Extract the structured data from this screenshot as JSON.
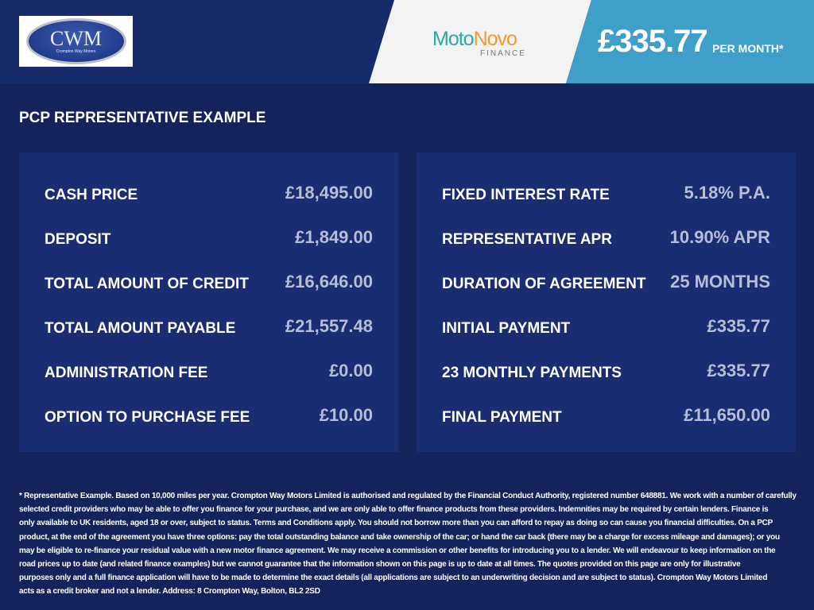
{
  "header": {
    "logo_text": "CWM",
    "logo_subtext": "Crompton Way Motors",
    "lender_name_1": "Moto",
    "lender_name_2": "Novo",
    "lender_sub": "FINANCE",
    "monthly_price": "£335.77",
    "per_month": "PER MONTH*"
  },
  "title": "PCP REPRESENTATIVE EXAMPLE",
  "left": [
    {
      "label": "CASH PRICE",
      "value": "£18,495.00"
    },
    {
      "label": "DEPOSIT",
      "value": "£1,849.00"
    },
    {
      "label": "TOTAL AMOUNT OF CREDIT",
      "value": "£16,646.00"
    },
    {
      "label": "TOTAL AMOUNT PAYABLE",
      "value": "£21,557.48"
    },
    {
      "label": "ADMINISTRATION FEE",
      "value": "£0.00"
    },
    {
      "label": "OPTION TO PURCHASE FEE",
      "value": "£10.00"
    }
  ],
  "right": [
    {
      "label": "FIXED INTEREST RATE",
      "value": "5.18% P.A."
    },
    {
      "label": "REPRESENTATIVE APR",
      "value": "10.90% APR"
    },
    {
      "label": "DURATION OF AGREEMENT",
      "value": "25 MONTHS"
    },
    {
      "label": "INITIAL PAYMENT",
      "value": "£335.77"
    },
    {
      "label": "23 MONTHLY PAYMENTS",
      "value": "£335.77"
    },
    {
      "label": "FINAL PAYMENT",
      "value": "£11,650.00"
    }
  ],
  "footer_lines": [
    "* Representative Example. Based on 10,000 miles per year. Crompton Way Motors Limited is authorised and regulated by the Financial Conduct Authority, registered number 648881. We work with a number of carefully",
    "selected credit providers who may be able to offer you finance for your purchase, and we are only able to offer finance products from these providers. Indemnities may be required by certain lenders. Finance is",
    "only available to UK residents, aged 18 or over, subject to status. Terms and Conditions apply. You should not borrow more than you can afford to repay as doing so can cause you financial difficulties. On a PCP",
    "product, at the end of the agreement you have three options: pay the total outstanding balance and take ownership of the car; or hand the car back (there may be a charge for excess mileage and damages); or you",
    "may be eligible to re-finance your residual value with a new motor finance agreement. We may receive a commission or other benefits for introducing you to a lender. We will endeavour to keep information on the",
    "road prices up to date (and related finance examples) but we cannot guarantee that the information shown on this page is up to date at all times. The quotes provided on this page are only for illustrative",
    "purposes only and a full finance application will have to be made to determine the exact details (all applications are subject to an underwriting decision and are subject to status). Crompton Way Motors Limited",
    "acts as a credit broker and not a lender. Address: 8 Crompton Way, Bolton, BL2 2SD"
  ]
}
